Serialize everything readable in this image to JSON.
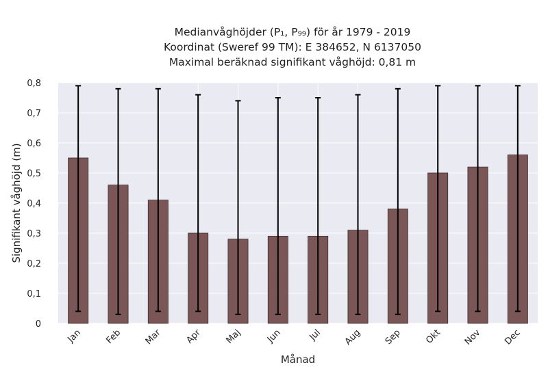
{
  "chart_data": {
    "type": "bar",
    "title_lines": [
      "Medianvåghöjder (P₁, P₉₉) för år 1979 - 2019",
      "Koordinat (Sweref 99 TM): E 384652, N 6137050",
      "Maximal beräknad signifikant våghöjd: 0,81 m"
    ],
    "xlabel": "Månad",
    "ylabel": "Signifikant våghöjd (m)",
    "ylim": [
      0,
      0.8
    ],
    "yticks": [
      0,
      0.1,
      0.2,
      0.3,
      0.4,
      0.5,
      0.6,
      0.7,
      0.8
    ],
    "ytick_labels": [
      "0",
      "0,1",
      "0,2",
      "0,3",
      "0,4",
      "0,5",
      "0,6",
      "0,7",
      "0,8"
    ],
    "categories": [
      "Jan",
      "Feb",
      "Mar",
      "Apr",
      "Maj",
      "Jun",
      "Jul",
      "Aug",
      "Sep",
      "Okt",
      "Nov",
      "Dec"
    ],
    "values": [
      0.55,
      0.46,
      0.41,
      0.3,
      0.28,
      0.29,
      0.29,
      0.31,
      0.38,
      0.5,
      0.52,
      0.56
    ],
    "p1": [
      0.04,
      0.03,
      0.04,
      0.04,
      0.03,
      0.03,
      0.03,
      0.03,
      0.03,
      0.04,
      0.04,
      0.04
    ],
    "p99": [
      0.79,
      0.78,
      0.78,
      0.76,
      0.74,
      0.75,
      0.75,
      0.76,
      0.78,
      0.79,
      0.79,
      0.79
    ],
    "grid": true,
    "bar_color": "#7a5656",
    "background_color": "#eaeaf2"
  }
}
